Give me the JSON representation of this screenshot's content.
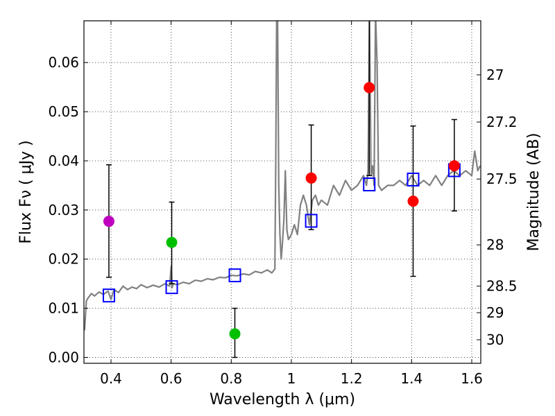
{
  "chart_data": {
    "type": "scatter",
    "title": "",
    "xlabel": "Wavelength  λ (μm)",
    "ylabel": "Flux  Fν  ( μJy )",
    "y2label": "Magnitude (AB)",
    "xlim": [
      0.31,
      1.63
    ],
    "ylim": [
      -0.0012,
      0.0685
    ],
    "grid": true,
    "x_ticks": [
      0.4,
      0.6,
      0.8,
      1,
      1.2,
      1.4,
      1.6
    ],
    "y_ticks": [
      0.0,
      0.01,
      0.02,
      0.03,
      0.04,
      0.05,
      0.06
    ],
    "x_tick_labels": [
      "0.4",
      "0.6",
      "0.8",
      "1",
      "1.2",
      "1.4",
      "1.6"
    ],
    "y_tick_labels": [
      "0.00",
      "0.01",
      "0.02",
      "0.03",
      "0.04",
      "0.05",
      "0.06"
    ],
    "mag_ticks": [
      {
        "label": "27",
        "flux": 0.0575
      },
      {
        "label": "27.2",
        "flux": 0.0479
      },
      {
        "label": "27.5",
        "flux": 0.0363
      },
      {
        "label": "28",
        "flux": 0.0229
      },
      {
        "label": "28.5",
        "flux": 0.0145
      },
      {
        "label": "29",
        "flux": 0.0091
      },
      {
        "label": "30",
        "flux": 0.0036
      }
    ],
    "measurements": [
      {
        "x": 0.393,
        "y": 0.0277,
        "yerr_low": 0.0163,
        "yerr_high": 0.0392,
        "color": "#bf00bf"
      },
      {
        "x": 0.602,
        "y": 0.0234,
        "yerr_low": 0.015,
        "yerr_high": 0.0316,
        "color": "#00bf00"
      },
      {
        "x": 0.812,
        "y": 0.0048,
        "yerr_low": 0.0,
        "yerr_high": 0.01,
        "color": "#00bf00"
      },
      {
        "x": 1.066,
        "y": 0.0365,
        "yerr_low": 0.026,
        "yerr_high": 0.0473,
        "color": "#ff0000"
      },
      {
        "x": 1.259,
        "y": 0.0549,
        "yerr_low": 0.037,
        "yerr_high": 0.069,
        "color": "#ff0000"
      },
      {
        "x": 1.405,
        "y": 0.0318,
        "yerr_low": 0.0165,
        "yerr_high": 0.0471,
        "color": "#ff0000"
      },
      {
        "x": 1.542,
        "y": 0.039,
        "yerr_low": 0.0298,
        "yerr_high": 0.0484,
        "color": "#ff0000"
      }
    ],
    "model_squares": [
      {
        "x": 0.393,
        "y": 0.0126
      },
      {
        "x": 0.602,
        "y": 0.0143
      },
      {
        "x": 0.812,
        "y": 0.0167
      },
      {
        "x": 1.066,
        "y": 0.0278
      },
      {
        "x": 1.259,
        "y": 0.0352
      },
      {
        "x": 1.405,
        "y": 0.0362
      },
      {
        "x": 1.542,
        "y": 0.0381
      }
    ],
    "spectrum": {
      "color": "#808080",
      "x": [
        0.312,
        0.318,
        0.325,
        0.335,
        0.345,
        0.36,
        0.375,
        0.39,
        0.4,
        0.41,
        0.425,
        0.44,
        0.455,
        0.47,
        0.485,
        0.5,
        0.52,
        0.54,
        0.56,
        0.58,
        0.595,
        0.6,
        0.603,
        0.607,
        0.62,
        0.64,
        0.66,
        0.68,
        0.7,
        0.72,
        0.74,
        0.76,
        0.78,
        0.8,
        0.82,
        0.84,
        0.86,
        0.88,
        0.9,
        0.92,
        0.935,
        0.945,
        0.948,
        0.951,
        0.954,
        0.958,
        0.962,
        0.966,
        0.97,
        0.975,
        0.98,
        0.985,
        0.99,
        1.0,
        1.01,
        1.02,
        1.03,
        1.04,
        1.05,
        1.06,
        1.07,
        1.08,
        1.09,
        1.1,
        1.12,
        1.14,
        1.16,
        1.18,
        1.2,
        1.22,
        1.24,
        1.25,
        1.255,
        1.26,
        1.265,
        1.27,
        1.275,
        1.28,
        1.285,
        1.29,
        1.3,
        1.32,
        1.34,
        1.36,
        1.38,
        1.4,
        1.42,
        1.44,
        1.46,
        1.48,
        1.5,
        1.52,
        1.54,
        1.56,
        1.58,
        1.6,
        1.61,
        1.62,
        1.628
      ],
      "y": [
        0.0055,
        0.0115,
        0.0122,
        0.013,
        0.0125,
        0.0133,
        0.0128,
        0.0135,
        0.0118,
        0.0138,
        0.0132,
        0.0145,
        0.0138,
        0.0143,
        0.014,
        0.0148,
        0.0142,
        0.0147,
        0.0143,
        0.015,
        0.0145,
        0.0185,
        0.0142,
        0.015,
        0.0148,
        0.0153,
        0.015,
        0.0157,
        0.0155,
        0.016,
        0.0158,
        0.0163,
        0.0162,
        0.0167,
        0.0166,
        0.017,
        0.0168,
        0.0175,
        0.0172,
        0.0178,
        0.0172,
        0.018,
        0.04,
        0.07,
        0.07,
        0.035,
        0.025,
        0.02,
        0.023,
        0.028,
        0.038,
        0.026,
        0.024,
        0.025,
        0.027,
        0.025,
        0.031,
        0.033,
        0.031,
        0.027,
        0.032,
        0.033,
        0.031,
        0.032,
        0.031,
        0.035,
        0.033,
        0.036,
        0.034,
        0.035,
        0.037,
        0.035,
        0.038,
        0.07,
        0.037,
        0.039,
        0.035,
        0.07,
        0.06,
        0.035,
        0.034,
        0.035,
        0.035,
        0.036,
        0.035,
        0.037,
        0.035,
        0.036,
        0.035,
        0.037,
        0.035,
        0.037,
        0.038,
        0.037,
        0.038,
        0.037,
        0.042,
        0.038,
        0.039
      ]
    }
  }
}
